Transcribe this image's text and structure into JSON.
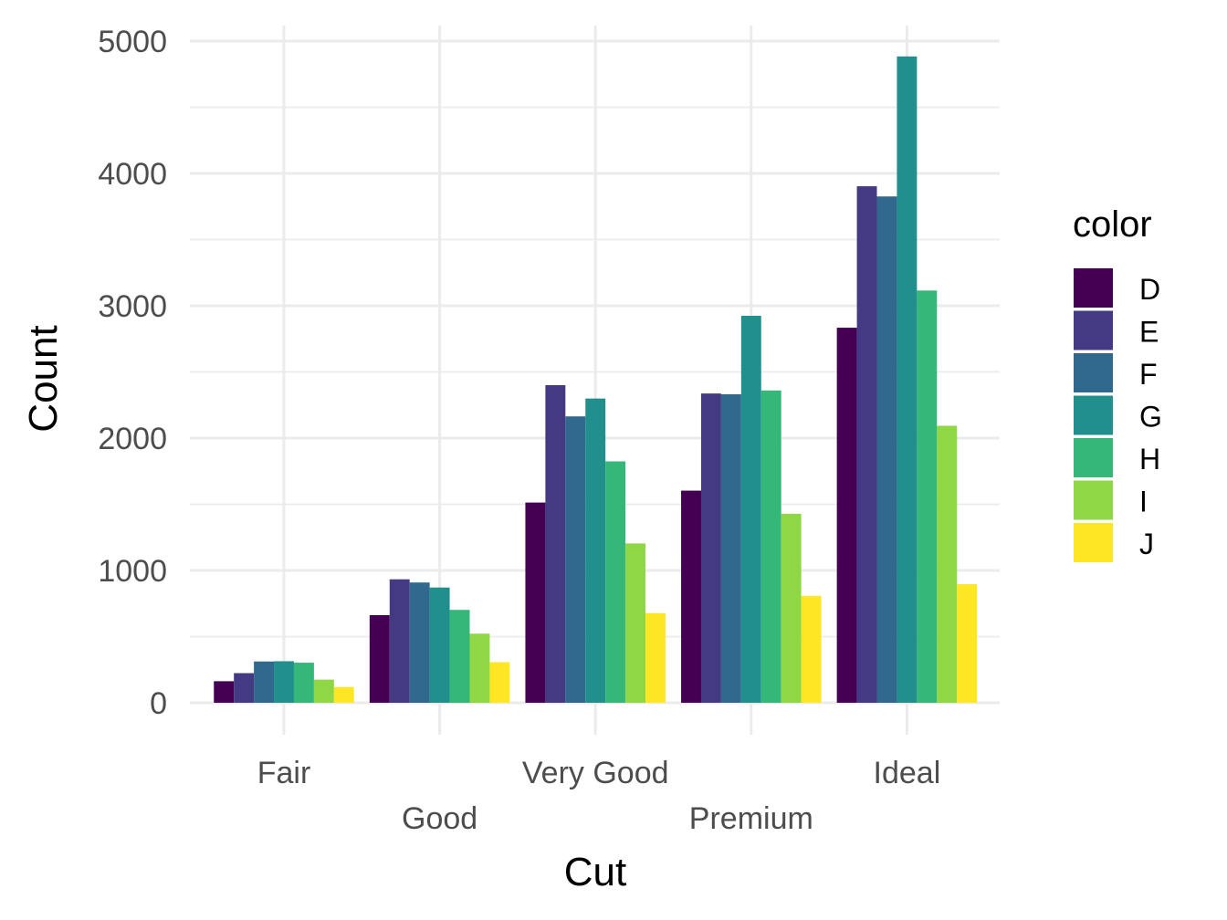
{
  "chart_data": {
    "type": "bar",
    "title": "",
    "xlabel": "Cut",
    "ylabel": "Count",
    "ylim": [
      0,
      5000
    ],
    "yticks": [
      0,
      1000,
      2000,
      3000,
      4000,
      5000
    ],
    "y_tick_labels": [
      "0",
      "1000",
      "2000",
      "3000",
      "4000",
      "5000"
    ],
    "grid": true,
    "legend": {
      "title": "color",
      "placement": "right"
    },
    "categories": [
      "Fair",
      "Good",
      "Very Good",
      "Premium",
      "Ideal"
    ],
    "series": [
      {
        "name": "D",
        "color": "#440154",
        "values": [
          163,
          662,
          1513,
          1603,
          2834
        ]
      },
      {
        "name": "E",
        "color": "#443A83",
        "values": [
          224,
          933,
          2400,
          2337,
          3903
        ]
      },
      {
        "name": "F",
        "color": "#31688E",
        "values": [
          312,
          909,
          2164,
          2331,
          3826
        ]
      },
      {
        "name": "G",
        "color": "#21908C",
        "values": [
          314,
          871,
          2299,
          2924,
          4884
        ]
      },
      {
        "name": "H",
        "color": "#35B779",
        "values": [
          303,
          702,
          1824,
          2360,
          3115
        ]
      },
      {
        "name": "I",
        "color": "#8FD744",
        "values": [
          175,
          522,
          1204,
          1428,
          2093
        ]
      },
      {
        "name": "J",
        "color": "#FDE725",
        "values": [
          119,
          307,
          678,
          808,
          896
        ]
      }
    ]
  }
}
